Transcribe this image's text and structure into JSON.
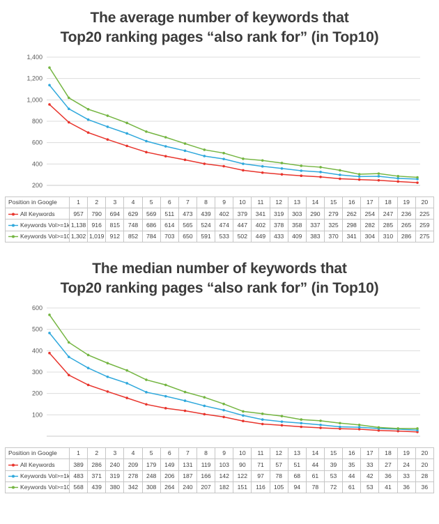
{
  "chart_data": [
    {
      "type": "line",
      "title": "The average number of keywords that\nTop20 ranking pages “also rank for” (in Top10)",
      "x_label_header": "Position in Google",
      "x": [
        1,
        2,
        3,
        4,
        5,
        6,
        7,
        8,
        9,
        10,
        11,
        12,
        13,
        14,
        15,
        16,
        17,
        18,
        19,
        20
      ],
      "ylim": [
        200,
        1400
      ],
      "yticks": [
        200,
        400,
        600,
        800,
        1000,
        1200,
        1400
      ],
      "ytick_labels": [
        "200",
        "400",
        "600",
        "800",
        "1,000",
        "1,200",
        "1,400"
      ],
      "grid": true,
      "legend_position": "table-left",
      "series": [
        {
          "name": "All Keywords",
          "color": "#e8342c",
          "values": [
            957,
            790,
            694,
            629,
            569,
            511,
            473,
            439,
            402,
            379,
            341,
            319,
            303,
            290,
            279,
            262,
            254,
            247,
            236,
            225
          ]
        },
        {
          "name": "Keywords Vol>=1k",
          "color": "#2fa8dc",
          "values": [
            1138,
            916,
            815,
            748,
            686,
            614,
            565,
            524,
            474,
            447,
            402,
            378,
            358,
            337,
            325,
            298,
            282,
            285,
            265,
            259
          ]
        },
        {
          "name": "Keywords Vol>=10k",
          "color": "#74b541",
          "values": [
            1302,
            1019,
            912,
            852,
            784,
            703,
            650,
            591,
            533,
            502,
            449,
            433,
            409,
            383,
            370,
            341,
            304,
            310,
            286,
            275
          ]
        }
      ]
    },
    {
      "type": "line",
      "title": "The median number of keywords that\nTop20 ranking pages “also rank for” (in Top10)",
      "x_label_header": "Position in Google",
      "x": [
        1,
        2,
        3,
        4,
        5,
        6,
        7,
        8,
        9,
        10,
        11,
        12,
        13,
        14,
        15,
        16,
        17,
        18,
        19,
        20
      ],
      "ylim": [
        0,
        600
      ],
      "yticks": [
        100,
        200,
        300,
        400,
        500,
        600
      ],
      "ytick_labels": [
        "100",
        "200",
        "300",
        "400",
        "500",
        "600"
      ],
      "grid": true,
      "legend_position": "table-left",
      "series": [
        {
          "name": "All Keywords",
          "color": "#e8342c",
          "values": [
            389,
            286,
            240,
            209,
            179,
            149,
            131,
            119,
            103,
            90,
            71,
            57,
            51,
            44,
            39,
            35,
            33,
            27,
            24,
            20
          ]
        },
        {
          "name": "Keywords Vol>=1k",
          "color": "#2fa8dc",
          "values": [
            483,
            371,
            319,
            278,
            248,
            206,
            187,
            166,
            142,
            122,
            97,
            78,
            68,
            61,
            53,
            44,
            42,
            36,
            33,
            28
          ]
        },
        {
          "name": "Keywords Vol>=10k",
          "color": "#74b541",
          "values": [
            568,
            439,
            380,
            342,
            308,
            264,
            240,
            207,
            182,
            151,
            116,
            105,
            94,
            78,
            72,
            61,
            53,
            41,
            36,
            36
          ]
        }
      ]
    }
  ]
}
